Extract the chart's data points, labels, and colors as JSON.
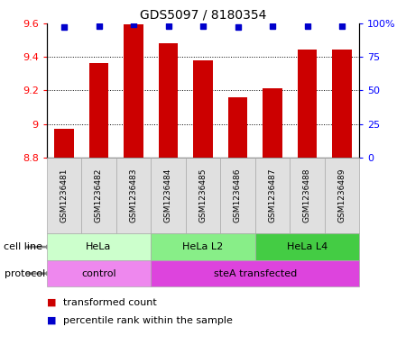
{
  "title": "GDS5097 / 8180354",
  "samples": [
    "GSM1236481",
    "GSM1236482",
    "GSM1236483",
    "GSM1236484",
    "GSM1236485",
    "GSM1236486",
    "GSM1236487",
    "GSM1236488",
    "GSM1236489"
  ],
  "bar_values": [
    8.97,
    9.36,
    9.59,
    9.48,
    9.38,
    9.16,
    9.21,
    9.44,
    9.44
  ],
  "percentile_values": [
    97,
    98,
    99,
    98,
    98,
    97,
    98,
    98,
    98
  ],
  "bar_color": "#cc0000",
  "dot_color": "#0000cc",
  "ylim_left": [
    8.8,
    9.6
  ],
  "ylim_right": [
    0,
    100
  ],
  "yticks_left": [
    8.8,
    9.0,
    9.2,
    9.4,
    9.6
  ],
  "yticks_right": [
    0,
    25,
    50,
    75,
    100
  ],
  "ytick_labels_left": [
    "8.8",
    "9",
    "9.2",
    "9.4",
    "9.6"
  ],
  "ytick_labels_right": [
    "0",
    "25",
    "50",
    "75",
    "100%"
  ],
  "grid_yticks": [
    9.0,
    9.2,
    9.4
  ],
  "cell_line_groups": [
    {
      "label": "HeLa",
      "start": 0,
      "end": 3,
      "color": "#ccffcc"
    },
    {
      "label": "HeLa L2",
      "start": 3,
      "end": 6,
      "color": "#88ee88"
    },
    {
      "label": "HeLa L4",
      "start": 6,
      "end": 9,
      "color": "#44cc44"
    }
  ],
  "protocol_groups": [
    {
      "label": "control",
      "start": 0,
      "end": 3,
      "color": "#ee88ee"
    },
    {
      "label": "steA transfected",
      "start": 3,
      "end": 9,
      "color": "#dd44dd"
    }
  ],
  "legend_bar_label": "transformed count",
  "legend_dot_label": "percentile rank within the sample",
  "bar_width": 0.55,
  "background_color": "#ffffff"
}
